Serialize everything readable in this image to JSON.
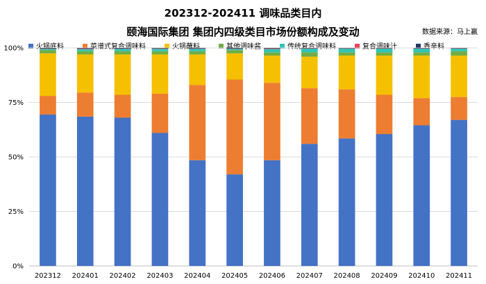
{
  "chart_data": {
    "type": "bar",
    "stacked": true,
    "title_line1": "202312-202411 调味品类目内",
    "title_line2": "颐海国际集团 集团内四级类目市场份额构成及变动",
    "source": "数据来源：马上赢",
    "categories": [
      "202312",
      "202401",
      "202402",
      "202403",
      "202404",
      "202405",
      "202406",
      "202407",
      "202408",
      "202409",
      "202410",
      "202411"
    ],
    "yticks": [
      "0%",
      "25%",
      "50%",
      "75%",
      "100%"
    ],
    "ylim": [
      0,
      100
    ],
    "grid": true,
    "legend_position": "top",
    "series": [
      {
        "name": "火锅底料",
        "color": "#4472c4",
        "values": [
          69.5,
          68.5,
          68,
          61,
          48.5,
          42,
          48.5,
          56,
          58.5,
          60.5,
          64.5,
          67
        ]
      },
      {
        "name": "菜谱式复合调味料",
        "color": "#ed7d31",
        "values": [
          8.5,
          11,
          10.5,
          18,
          34.5,
          43.5,
          35.5,
          25.5,
          22.5,
          18,
          12.5,
          10.5
        ]
      },
      {
        "name": "火锅蘸料",
        "color": "#f5c000",
        "values": [
          19.5,
          17.5,
          18.5,
          18,
          14,
          12,
          12.5,
          14.5,
          15.5,
          18,
          19.5,
          19
        ]
      },
      {
        "name": "其他调味酱",
        "color": "#70ad47",
        "values": [
          1.5,
          1.5,
          1.5,
          1.5,
          1.5,
          1.5,
          1.5,
          2,
          1.5,
          1.5,
          1.5,
          2
        ]
      },
      {
        "name": "传统复合调味料",
        "color": "#2ec4b6",
        "values": [
          0.6,
          1,
          1.1,
          1.1,
          1.1,
          0.6,
          1.5,
          1.7,
          1.7,
          1.7,
          1.7,
          1.2
        ]
      },
      {
        "name": "复合调味汁",
        "color": "#e8455c",
        "values": [
          0.2,
          0.3,
          0.2,
          0.2,
          0.2,
          0.2,
          0.3,
          0.2,
          0.2,
          0.2,
          0.2,
          0.2
        ]
      },
      {
        "name": "香辛料",
        "color": "#203864",
        "values": [
          0.2,
          0.2,
          0.2,
          0.2,
          0.2,
          0.2,
          0.2,
          0.1,
          0.1,
          0.1,
          0.1,
          0.1
        ]
      }
    ]
  }
}
